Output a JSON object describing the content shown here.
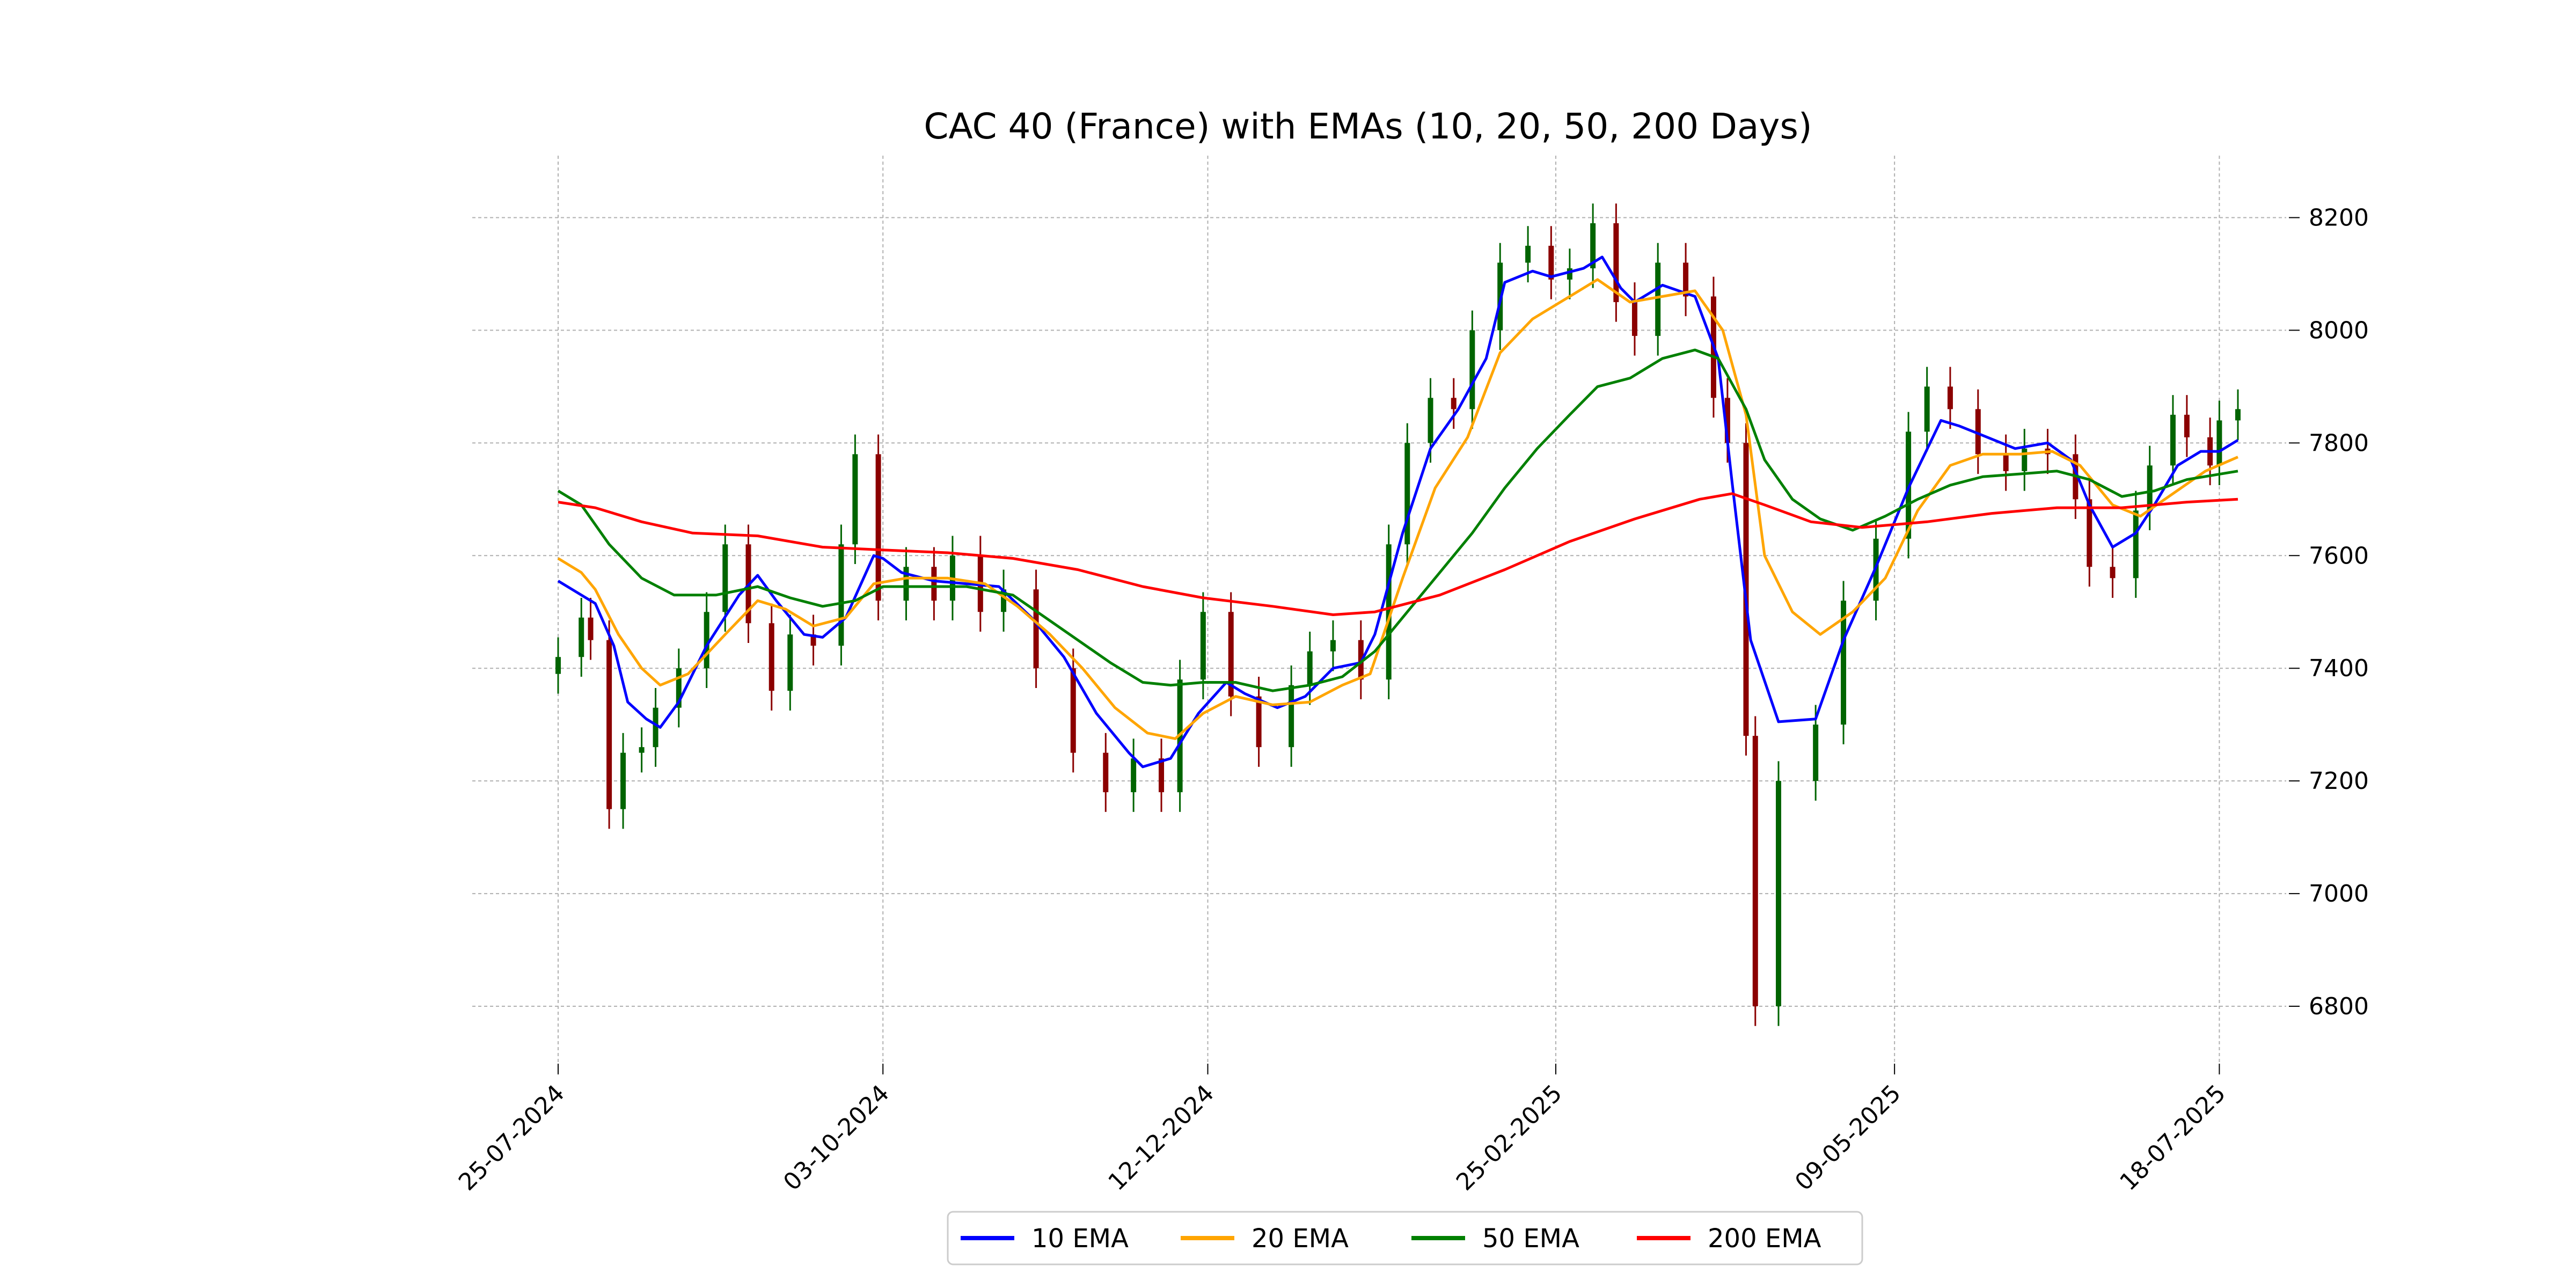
{
  "chart_data": {
    "type": "candlestick-line",
    "title": "CAC 40 (France) with EMAs (10, 20, 50, 200 Days)",
    "xlabel": "",
    "ylabel": "",
    "x_range": [
      "2024-07-25",
      "2025-07-22"
    ],
    "ylim": [
      6700,
      8310
    ],
    "grid": true,
    "legend": "bottom-center",
    "yticks": [
      6800,
      7000,
      7200,
      7400,
      7600,
      7800,
      8000,
      8200
    ],
    "xticks": [
      {
        "date": "2024-07-25",
        "label": "25-07-2024"
      },
      {
        "date": "2024-10-03",
        "label": "03-10-2024"
      },
      {
        "date": "2024-12-12",
        "label": "12-12-2024"
      },
      {
        "date": "2025-02-25",
        "label": "25-02-2025"
      },
      {
        "date": "2025-05-09",
        "label": "09-05-2025"
      },
      {
        "date": "2025-07-18",
        "label": "18-07-2025"
      }
    ],
    "candle_colors": {
      "up": "#006400",
      "down": "#8b0000"
    },
    "candles_close": [
      [
        "2024-07-25",
        7420
      ],
      [
        "2024-07-30",
        7490
      ],
      [
        "2024-08-01",
        7450
      ],
      [
        "2024-08-05",
        7150
      ],
      [
        "2024-08-08",
        7250
      ],
      [
        "2024-08-12",
        7260
      ],
      [
        "2024-08-15",
        7330
      ],
      [
        "2024-08-20",
        7400
      ],
      [
        "2024-08-26",
        7500
      ],
      [
        "2024-08-30",
        7620
      ],
      [
        "2024-09-04",
        7480
      ],
      [
        "2024-09-09",
        7360
      ],
      [
        "2024-09-13",
        7460
      ],
      [
        "2024-09-18",
        7440
      ],
      [
        "2024-09-24",
        7620
      ],
      [
        "2024-09-27",
        7780
      ],
      [
        "2024-10-02",
        7520
      ],
      [
        "2024-10-08",
        7580
      ],
      [
        "2024-10-14",
        7520
      ],
      [
        "2024-10-18",
        7600
      ],
      [
        "2024-10-24",
        7500
      ],
      [
        "2024-10-29",
        7540
      ],
      [
        "2024-11-05",
        7400
      ],
      [
        "2024-11-13",
        7250
      ],
      [
        "2024-11-20",
        7180
      ],
      [
        "2024-11-26",
        7240
      ],
      [
        "2024-12-02",
        7180
      ],
      [
        "2024-12-06",
        7380
      ],
      [
        "2024-12-11",
        7500
      ],
      [
        "2024-12-17",
        7350
      ],
      [
        "2024-12-23",
        7260
      ],
      [
        "2024-12-30",
        7370
      ],
      [
        "2025-01-03",
        7430
      ],
      [
        "2025-01-08",
        7450
      ],
      [
        "2025-01-14",
        7380
      ],
      [
        "2025-01-20",
        7620
      ],
      [
        "2025-01-24",
        7800
      ],
      [
        "2025-01-29",
        7880
      ],
      [
        "2025-02-03",
        7860
      ],
      [
        "2025-02-07",
        8000
      ],
      [
        "2025-02-13",
        8120
      ],
      [
        "2025-02-19",
        8150
      ],
      [
        "2025-02-24",
        8090
      ],
      [
        "2025-02-28",
        8110
      ],
      [
        "2025-03-05",
        8190
      ],
      [
        "2025-03-10",
        8050
      ],
      [
        "2025-03-14",
        7990
      ],
      [
        "2025-03-19",
        8120
      ],
      [
        "2025-03-25",
        8060
      ],
      [
        "2025-03-31",
        7880
      ],
      [
        "2025-04-03",
        7800
      ],
      [
        "2025-04-07",
        7280
      ],
      [
        "2025-04-09",
        6800
      ],
      [
        "2025-04-14",
        7200
      ],
      [
        "2025-04-22",
        7300
      ],
      [
        "2025-04-28",
        7520
      ],
      [
        "2025-05-05",
        7630
      ],
      [
        "2025-05-12",
        7820
      ],
      [
        "2025-05-16",
        7900
      ],
      [
        "2025-05-21",
        7860
      ],
      [
        "2025-05-27",
        7780
      ],
      [
        "2025-06-02",
        7750
      ],
      [
        "2025-06-06",
        7790
      ],
      [
        "2025-06-11",
        7780
      ],
      [
        "2025-06-17",
        7700
      ],
      [
        "2025-06-20",
        7580
      ],
      [
        "2025-06-25",
        7560
      ],
      [
        "2025-06-30",
        7680
      ],
      [
        "2025-07-03",
        7760
      ],
      [
        "2025-07-08",
        7850
      ],
      [
        "2025-07-11",
        7810
      ],
      [
        "2025-07-16",
        7760
      ],
      [
        "2025-07-18",
        7840
      ],
      [
        "2025-07-22",
        7860
      ]
    ],
    "series": [
      {
        "name": "10 EMA",
        "color": "#0000ff",
        "points": [
          [
            "2024-07-25",
            7555
          ],
          [
            "2024-07-29",
            7535
          ],
          [
            "2024-08-02",
            7515
          ],
          [
            "2024-08-06",
            7440
          ],
          [
            "2024-08-09",
            7340
          ],
          [
            "2024-08-13",
            7310
          ],
          [
            "2024-08-16",
            7295
          ],
          [
            "2024-08-20",
            7340
          ],
          [
            "2024-08-26",
            7440
          ],
          [
            "2024-09-02",
            7530
          ],
          [
            "2024-09-06",
            7565
          ],
          [
            "2024-09-10",
            7520
          ],
          [
            "2024-09-16",
            7460
          ],
          [
            "2024-09-20",
            7455
          ],
          [
            "2024-09-25",
            7490
          ],
          [
            "2024-10-01",
            7600
          ],
          [
            "2024-10-03",
            7595
          ],
          [
            "2024-10-07",
            7570
          ],
          [
            "2024-10-14",
            7555
          ],
          [
            "2024-10-21",
            7550
          ],
          [
            "2024-10-28",
            7545
          ],
          [
            "2024-11-04",
            7490
          ],
          [
            "2024-11-11",
            7420
          ],
          [
            "2024-11-18",
            7320
          ],
          [
            "2024-11-25",
            7250
          ],
          [
            "2024-11-28",
            7225
          ],
          [
            "2024-12-04",
            7240
          ],
          [
            "2024-12-10",
            7320
          ],
          [
            "2024-12-16",
            7375
          ],
          [
            "2024-12-20",
            7355
          ],
          [
            "2024-12-27",
            7330
          ],
          [
            "2025-01-02",
            7350
          ],
          [
            "2025-01-08",
            7400
          ],
          [
            "2025-01-14",
            7410
          ],
          [
            "2025-01-17",
            7460
          ],
          [
            "2025-01-23",
            7640
          ],
          [
            "2025-01-29",
            7790
          ],
          [
            "2025-02-04",
            7860
          ],
          [
            "2025-02-10",
            7950
          ],
          [
            "2025-02-14",
            8085
          ],
          [
            "2025-02-20",
            8105
          ],
          [
            "2025-02-24",
            8095
          ],
          [
            "2025-03-03",
            8110
          ],
          [
            "2025-03-07",
            8130
          ],
          [
            "2025-03-11",
            8075
          ],
          [
            "2025-03-14",
            8050
          ],
          [
            "2025-03-20",
            8080
          ],
          [
            "2025-03-27",
            8060
          ],
          [
            "2025-04-01",
            7950
          ],
          [
            "2025-04-04",
            7730
          ],
          [
            "2025-04-08",
            7450
          ],
          [
            "2025-04-14",
            7305
          ],
          [
            "2025-04-22",
            7310
          ],
          [
            "2025-04-28",
            7450
          ],
          [
            "2025-05-05",
            7580
          ],
          [
            "2025-05-12",
            7720
          ],
          [
            "2025-05-19",
            7840
          ],
          [
            "2025-05-23",
            7830
          ],
          [
            "2025-05-29",
            7810
          ],
          [
            "2025-06-04",
            7790
          ],
          [
            "2025-06-11",
            7800
          ],
          [
            "2025-06-16",
            7770
          ],
          [
            "2025-06-20",
            7690
          ],
          [
            "2025-06-25",
            7615
          ],
          [
            "2025-06-30",
            7640
          ],
          [
            "2025-07-04",
            7690
          ],
          [
            "2025-07-09",
            7760
          ],
          [
            "2025-07-14",
            7785
          ],
          [
            "2025-07-18",
            7785
          ],
          [
            "2025-07-22",
            7805
          ]
        ]
      },
      {
        "name": "20 EMA",
        "color": "#ffa500",
        "points": [
          [
            "2024-07-25",
            7595
          ],
          [
            "2024-07-30",
            7570
          ],
          [
            "2024-08-02",
            7540
          ],
          [
            "2024-08-07",
            7460
          ],
          [
            "2024-08-12",
            7400
          ],
          [
            "2024-08-16",
            7370
          ],
          [
            "2024-08-22",
            7390
          ],
          [
            "2024-08-30",
            7460
          ],
          [
            "2024-09-06",
            7520
          ],
          [
            "2024-09-12",
            7505
          ],
          [
            "2024-09-18",
            7475
          ],
          [
            "2024-09-25",
            7490
          ],
          [
            "2024-10-01",
            7550
          ],
          [
            "2024-10-08",
            7560
          ],
          [
            "2024-10-17",
            7560
          ],
          [
            "2024-10-25",
            7550
          ],
          [
            "2024-11-01",
            7510
          ],
          [
            "2024-11-08",
            7460
          ],
          [
            "2024-11-15",
            7400
          ],
          [
            "2024-11-22",
            7330
          ],
          [
            "2024-11-29",
            7285
          ],
          [
            "2024-12-05",
            7275
          ],
          [
            "2024-12-11",
            7320
          ],
          [
            "2024-12-18",
            7350
          ],
          [
            "2024-12-26",
            7335
          ],
          [
            "2025-01-03",
            7340
          ],
          [
            "2025-01-10",
            7370
          ],
          [
            "2025-01-16",
            7390
          ],
          [
            "2025-01-23",
            7560
          ],
          [
            "2025-01-30",
            7720
          ],
          [
            "2025-02-06",
            7810
          ],
          [
            "2025-02-13",
            7960
          ],
          [
            "2025-02-20",
            8020
          ],
          [
            "2025-02-26",
            8050
          ],
          [
            "2025-03-06",
            8090
          ],
          [
            "2025-03-13",
            8050
          ],
          [
            "2025-03-20",
            8060
          ],
          [
            "2025-03-27",
            8070
          ],
          [
            "2025-04-02",
            8000
          ],
          [
            "2025-04-07",
            7850
          ],
          [
            "2025-04-11",
            7600
          ],
          [
            "2025-04-17",
            7500
          ],
          [
            "2025-04-23",
            7460
          ],
          [
            "2025-04-30",
            7500
          ],
          [
            "2025-05-07",
            7560
          ],
          [
            "2025-05-14",
            7680
          ],
          [
            "2025-05-21",
            7760
          ],
          [
            "2025-05-28",
            7780
          ],
          [
            "2025-06-05",
            7780
          ],
          [
            "2025-06-12",
            7785
          ],
          [
            "2025-06-18",
            7760
          ],
          [
            "2025-06-25",
            7690
          ],
          [
            "2025-07-01",
            7670
          ],
          [
            "2025-07-08",
            7710
          ],
          [
            "2025-07-15",
            7750
          ],
          [
            "2025-07-22",
            7775
          ]
        ]
      },
      {
        "name": "50 EMA",
        "color": "#008000",
        "points": [
          [
            "2024-07-25",
            7715
          ],
          [
            "2024-07-30",
            7690
          ],
          [
            "2024-08-05",
            7620
          ],
          [
            "2024-08-12",
            7560
          ],
          [
            "2024-08-19",
            7530
          ],
          [
            "2024-08-28",
            7530
          ],
          [
            "2024-09-06",
            7545
          ],
          [
            "2024-09-13",
            7525
          ],
          [
            "2024-09-20",
            7510
          ],
          [
            "2024-09-27",
            7520
          ],
          [
            "2024-10-03",
            7545
          ],
          [
            "2024-10-10",
            7545
          ],
          [
            "2024-10-21",
            7545
          ],
          [
            "2024-10-31",
            7530
          ],
          [
            "2024-11-07",
            7490
          ],
          [
            "2024-11-14",
            7450
          ],
          [
            "2024-11-21",
            7410
          ],
          [
            "2024-11-28",
            7375
          ],
          [
            "2024-12-04",
            7370
          ],
          [
            "2024-12-11",
            7375
          ],
          [
            "2024-12-18",
            7375
          ],
          [
            "2024-12-26",
            7360
          ],
          [
            "2025-01-03",
            7370
          ],
          [
            "2025-01-10",
            7385
          ],
          [
            "2025-01-17",
            7430
          ],
          [
            "2025-01-24",
            7500
          ],
          [
            "2025-01-31",
            7570
          ],
          [
            "2025-02-07",
            7640
          ],
          [
            "2025-02-14",
            7720
          ],
          [
            "2025-02-21",
            7790
          ],
          [
            "2025-02-28",
            7850
          ],
          [
            "2025-03-06",
            7900
          ],
          [
            "2025-03-13",
            7915
          ],
          [
            "2025-03-20",
            7950
          ],
          [
            "2025-03-27",
            7965
          ],
          [
            "2025-04-01",
            7950
          ],
          [
            "2025-04-07",
            7860
          ],
          [
            "2025-04-11",
            7770
          ],
          [
            "2025-04-17",
            7700
          ],
          [
            "2025-04-23",
            7665
          ],
          [
            "2025-04-30",
            7645
          ],
          [
            "2025-05-07",
            7670
          ],
          [
            "2025-05-14",
            7700
          ],
          [
            "2025-05-21",
            7725
          ],
          [
            "2025-05-28",
            7740
          ],
          [
            "2025-06-05",
            7745
          ],
          [
            "2025-06-13",
            7750
          ],
          [
            "2025-06-20",
            7735
          ],
          [
            "2025-06-27",
            7705
          ],
          [
            "2025-07-04",
            7715
          ],
          [
            "2025-07-11",
            7735
          ],
          [
            "2025-07-22",
            7750
          ]
        ]
      },
      {
        "name": "200 EMA",
        "color": "#ff0000",
        "points": [
          [
            "2024-07-25",
            7695
          ],
          [
            "2024-08-02",
            7685
          ],
          [
            "2024-08-12",
            7660
          ],
          [
            "2024-08-23",
            7640
          ],
          [
            "2024-09-06",
            7635
          ],
          [
            "2024-09-20",
            7615
          ],
          [
            "2024-10-03",
            7610
          ],
          [
            "2024-10-17",
            7605
          ],
          [
            "2024-10-31",
            7595
          ],
          [
            "2024-11-14",
            7575
          ],
          [
            "2024-11-28",
            7545
          ],
          [
            "2024-12-11",
            7525
          ],
          [
            "2024-12-26",
            7510
          ],
          [
            "2025-01-08",
            7495
          ],
          [
            "2025-01-17",
            7500
          ],
          [
            "2025-01-31",
            7530
          ],
          [
            "2025-02-14",
            7575
          ],
          [
            "2025-02-28",
            7625
          ],
          [
            "2025-03-14",
            7665
          ],
          [
            "2025-03-28",
            7700
          ],
          [
            "2025-04-04",
            7710
          ],
          [
            "2025-04-11",
            7690
          ],
          [
            "2025-04-21",
            7660
          ],
          [
            "2025-05-02",
            7650
          ],
          [
            "2025-05-16",
            7660
          ],
          [
            "2025-05-30",
            7675
          ],
          [
            "2025-06-13",
            7685
          ],
          [
            "2025-06-27",
            7685
          ],
          [
            "2025-07-11",
            7695
          ],
          [
            "2025-07-22",
            7700
          ]
        ]
      }
    ]
  }
}
